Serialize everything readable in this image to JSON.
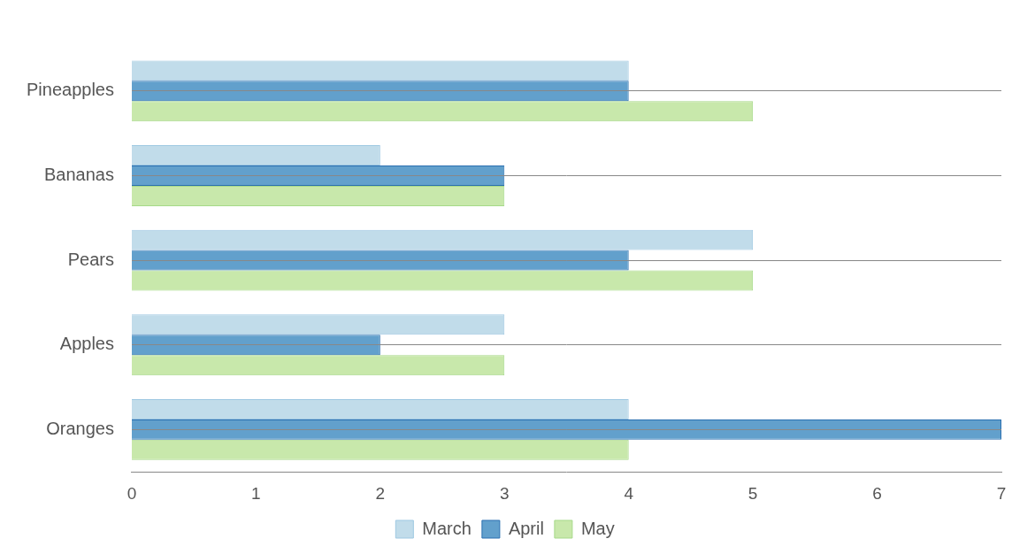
{
  "chart_data": {
    "type": "bar",
    "orientation": "horizontal",
    "categories": [
      "Oranges",
      "Apples",
      "Pears",
      "Bananas",
      "Pineapples"
    ],
    "series": [
      {
        "name": "March",
        "color": "#c1dcea",
        "values": [
          4,
          3,
          5,
          2,
          4
        ]
      },
      {
        "name": "April",
        "color": "#62a0cc",
        "values": [
          7,
          2,
          4,
          3,
          4
        ]
      },
      {
        "name": "May",
        "color": "#c8e8ab",
        "values": [
          4,
          3,
          5,
          3,
          5
        ]
      }
    ],
    "xlim": [
      0,
      7
    ],
    "xticks": [
      0,
      1,
      2,
      3,
      4,
      5,
      6,
      7
    ],
    "grid": true,
    "legend": "bottom"
  }
}
